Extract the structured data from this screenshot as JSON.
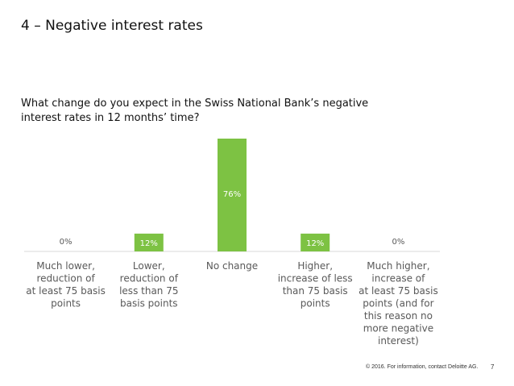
{
  "slide": {
    "title": "4 – Negative interest rates",
    "question_line1": "What change do you expect in the Swiss National Bank’s negative",
    "question_line2": "interest rates in 12 months’ time?",
    "footer": "© 2016. For information, contact Deloitte AG.",
    "page_number": "7"
  },
  "colors": {
    "bar": "#7dc243",
    "baseline": "#d9d9d9",
    "label_text": "#595959",
    "value_text_inside": "#ffffff",
    "value_text_outside": "#595959"
  },
  "chart_data": {
    "type": "bar",
    "title": "",
    "xlabel": "",
    "ylabel": "",
    "ylim": [
      0,
      76
    ],
    "categories": [
      [
        "Much lower,",
        "reduction of",
        "at least 75 basis",
        "points"
      ],
      [
        "Lower,",
        "reduction of",
        "less than 75",
        "basis points"
      ],
      [
        "No change"
      ],
      [
        "Higher,",
        "increase of less",
        "than 75 basis",
        "points"
      ],
      [
        "Much higher,",
        "increase of",
        "at least 75 basis",
        "points (and for",
        "this reason no",
        "more negative",
        "interest)"
      ]
    ],
    "values": [
      0,
      12,
      76,
      12,
      0
    ],
    "value_labels": [
      "0%",
      "12%",
      "76%",
      "12%",
      "0%"
    ]
  }
}
